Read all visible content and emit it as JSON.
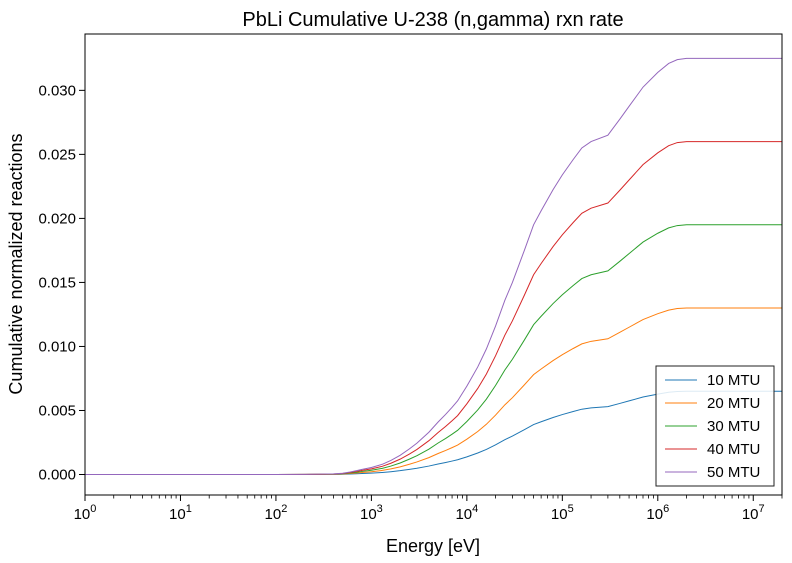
{
  "chart_data": {
    "type": "line",
    "title": "PbLi Cumulative U-238 (n,gamma) rxn rate",
    "xlabel": "Energy [eV]",
    "ylabel": "Cumulative normalized reactions",
    "xscale": "log",
    "xlim": [
      1,
      20000000
    ],
    "ylim": [
      -0.0016,
      0.0344
    ],
    "x_ticks": [
      {
        "value": 1,
        "base": "10",
        "exp": "0"
      },
      {
        "value": 10,
        "base": "10",
        "exp": "1"
      },
      {
        "value": 100,
        "base": "10",
        "exp": "2"
      },
      {
        "value": 1000,
        "base": "10",
        "exp": "3"
      },
      {
        "value": 10000,
        "base": "10",
        "exp": "4"
      },
      {
        "value": 100000,
        "base": "10",
        "exp": "5"
      },
      {
        "value": 1000000,
        "base": "10",
        "exp": "6"
      },
      {
        "value": 10000000,
        "base": "10",
        "exp": "7"
      }
    ],
    "y_ticks": [
      {
        "value": 0.0,
        "label": "0.000"
      },
      {
        "value": 0.005,
        "label": "0.005"
      },
      {
        "value": 0.01,
        "label": "0.010"
      },
      {
        "value": 0.015,
        "label": "0.015"
      },
      {
        "value": 0.02,
        "label": "0.020"
      },
      {
        "value": 0.025,
        "label": "0.025"
      },
      {
        "value": 0.03,
        "label": "0.030"
      }
    ],
    "grid": false,
    "legend_position": "lower-right",
    "x": [
      1,
      100,
      200,
      300,
      400,
      500,
      600,
      700,
      800,
      1000,
      1300,
      1600,
      2000,
      2500,
      3000,
      4000,
      5000,
      6000,
      7000,
      8000,
      10000,
      13000,
      16000,
      20000,
      25000,
      30000,
      40000,
      50000,
      60000,
      80000,
      100000,
      130000,
      160000,
      200000,
      300000,
      400000,
      500000,
      700000,
      1000000,
      1300000,
      1600000,
      2000000,
      3000000,
      5000000,
      10000000,
      20000000
    ],
    "series": [
      {
        "name": "10 MTU",
        "color": "#1f77b4",
        "values": [
          0,
          0,
          2e-06,
          6e-06,
          1e-05,
          2e-05,
          4e-05,
          6e-05,
          8e-05,
          0.00011,
          0.00016,
          0.00022,
          0.0003,
          0.0004,
          0.00049,
          0.00066,
          0.00082,
          0.00094,
          0.00105,
          0.00115,
          0.00138,
          0.00168,
          0.00196,
          0.00232,
          0.00272,
          0.003,
          0.0035,
          0.0039,
          0.00412,
          0.00445,
          0.00468,
          0.00492,
          0.0051,
          0.0052,
          0.0053,
          0.00555,
          0.00575,
          0.00605,
          0.00628,
          0.00642,
          0.00648,
          0.0065,
          0.0065,
          0.0065,
          0.0065,
          0.0065
        ]
      },
      {
        "name": "20 MTU",
        "color": "#ff7f0e",
        "values": [
          0,
          0,
          4e-06,
          1.2e-05,
          2e-05,
          4e-05,
          8e-05,
          0.00012,
          0.00016,
          0.00022,
          0.00032,
          0.00044,
          0.0006,
          0.0008,
          0.00098,
          0.00132,
          0.00164,
          0.00188,
          0.0021,
          0.0023,
          0.00276,
          0.00336,
          0.00392,
          0.00464,
          0.00544,
          0.006,
          0.007,
          0.0078,
          0.00824,
          0.0089,
          0.00936,
          0.00984,
          0.0102,
          0.0104,
          0.0106,
          0.0111,
          0.0115,
          0.0121,
          0.01256,
          0.01284,
          0.01296,
          0.013,
          0.013,
          0.013,
          0.013,
          0.013
        ]
      },
      {
        "name": "30 MTU",
        "color": "#2ca02c",
        "values": [
          0,
          0,
          6e-06,
          1.8e-05,
          3e-05,
          6e-05,
          0.00012,
          0.00018,
          0.00024,
          0.00033,
          0.00048,
          0.00066,
          0.0009,
          0.0012,
          0.00147,
          0.00198,
          0.00246,
          0.00282,
          0.00315,
          0.00345,
          0.00414,
          0.00504,
          0.00588,
          0.00696,
          0.00816,
          0.009,
          0.0105,
          0.0117,
          0.01236,
          0.01335,
          0.01404,
          0.01476,
          0.0153,
          0.0156,
          0.0159,
          0.01665,
          0.01725,
          0.01815,
          0.01884,
          0.01926,
          0.01944,
          0.0195,
          0.0195,
          0.0195,
          0.0195,
          0.0195
        ]
      },
      {
        "name": "40 MTU",
        "color": "#d62728",
        "values": [
          0,
          0,
          8e-06,
          2.4e-05,
          4e-05,
          8e-05,
          0.00016,
          0.00024,
          0.00032,
          0.00044,
          0.00064,
          0.00088,
          0.0012,
          0.0016,
          0.00196,
          0.00264,
          0.00328,
          0.00376,
          0.0042,
          0.0046,
          0.00552,
          0.00672,
          0.00784,
          0.00928,
          0.01088,
          0.012,
          0.014,
          0.0156,
          0.01648,
          0.0178,
          0.01872,
          0.01968,
          0.0204,
          0.0208,
          0.0212,
          0.0222,
          0.023,
          0.0242,
          0.02512,
          0.02568,
          0.02592,
          0.026,
          0.026,
          0.026,
          0.026,
          0.026
        ]
      },
      {
        "name": "50 MTU",
        "color": "#9467bd",
        "values": [
          0,
          0,
          1e-05,
          3e-05,
          5e-05,
          0.0001,
          0.0002,
          0.0003,
          0.0004,
          0.00055,
          0.0008,
          0.0011,
          0.0015,
          0.002,
          0.00245,
          0.0033,
          0.0041,
          0.0047,
          0.00525,
          0.00575,
          0.0069,
          0.0084,
          0.0098,
          0.0116,
          0.0136,
          0.015,
          0.0175,
          0.0195,
          0.0206,
          0.02225,
          0.0234,
          0.0246,
          0.0255,
          0.026,
          0.0265,
          0.02775,
          0.02875,
          0.03025,
          0.0314,
          0.0321,
          0.0324,
          0.0325,
          0.0325,
          0.0325,
          0.0325,
          0.0325
        ]
      }
    ]
  }
}
